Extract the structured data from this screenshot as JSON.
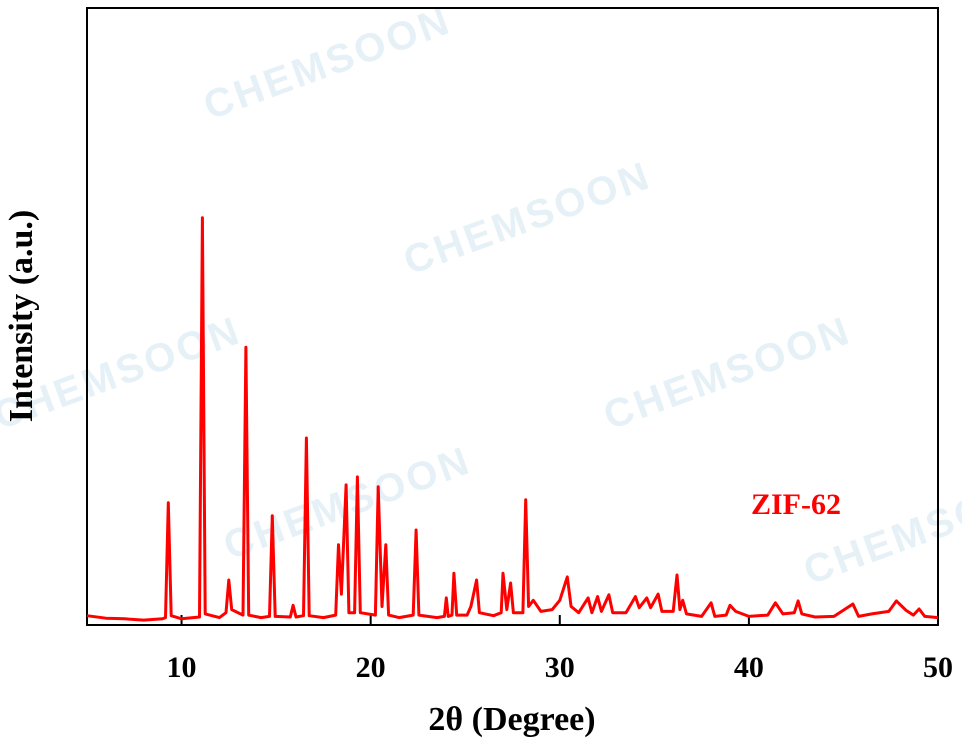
{
  "chart_data": {
    "type": "line",
    "xlabel": "2θ (Degree)",
    "ylabel": "Intensity (a.u.)",
    "watermark": "CHEMSOON",
    "xlim": [
      5,
      50
    ],
    "xticks": [
      10,
      20,
      30,
      40,
      50
    ],
    "ylim": [
      0,
      100
    ],
    "x": [
      5,
      6,
      7,
      8,
      9,
      9.15,
      9.3,
      9.45,
      10,
      10.95,
      11.1,
      11.25,
      12,
      12.35,
      12.5,
      12.65,
      13.25,
      13.4,
      13.55,
      14.2,
      14.65,
      14.8,
      14.95,
      15.75,
      15.9,
      16.05,
      16.45,
      16.6,
      16.75,
      17.5,
      18.15,
      18.3,
      18.45,
      18.7,
      18.85,
      19.15,
      19.3,
      19.45,
      20.25,
      20.4,
      20.6,
      20.8,
      20.95,
      21.5,
      22.25,
      22.4,
      22.55,
      23.5,
      23.9,
      24.0,
      24.1,
      24.3,
      24.4,
      24.55,
      25.1,
      25.3,
      25.6,
      25.75,
      26.5,
      26.9,
      27.0,
      27.2,
      27.4,
      27.55,
      28.05,
      28.2,
      28.35,
      28.6,
      29,
      29.6,
      30,
      30.4,
      30.6,
      31,
      31.5,
      31.7,
      32.0,
      32.2,
      32.6,
      32.8,
      33.5,
      34.0,
      34.2,
      34.6,
      34.8,
      35.2,
      35.4,
      36,
      36.2,
      36.35,
      36.5,
      36.7,
      37.5,
      38.0,
      38.2,
      38.8,
      39.0,
      39.3,
      40,
      41,
      41.4,
      41.8,
      42.4,
      42.6,
      42.8,
      43.5,
      44.5,
      45.5,
      45.8,
      46.5,
      47.4,
      47.8,
      48.3,
      48.7,
      49.0,
      49.3,
      50
    ],
    "series": [
      {
        "name": "ZIF-62",
        "color": "#ff0000",
        "values": [
          1.5,
          1.1,
          1.0,
          0.8,
          1.0,
          1.2,
          19.8,
          1.5,
          1.0,
          1.3,
          66,
          1.8,
          1.2,
          2,
          7.3,
          2.5,
          1.6,
          45,
          1.6,
          1.2,
          1.4,
          17.7,
          1.4,
          1.3,
          3.2,
          1.3,
          1.5,
          30.3,
          1.5,
          1.2,
          1.6,
          13,
          5,
          22.7,
          2,
          2,
          24,
          2,
          1.6,
          22.4,
          3,
          13,
          1.6,
          1.2,
          1.6,
          15.4,
          1.6,
          1.2,
          1.4,
          4.4,
          1.4,
          1.6,
          8.4,
          1.6,
          1.6,
          3,
          7.3,
          2,
          1.5,
          2,
          8.4,
          2.5,
          6.8,
          2,
          2,
          20.3,
          3,
          4,
          2.2,
          2.5,
          4,
          7.8,
          3,
          2,
          4.4,
          2,
          4.6,
          2.2,
          4.9,
          2,
          2,
          4.6,
          2.8,
          4.4,
          2.8,
          5,
          2.2,
          2.2,
          8.1,
          2.5,
          4,
          1.8,
          1.4,
          3.6,
          1.4,
          1.6,
          3.2,
          2.2,
          1.4,
          1.6,
          3.6,
          1.8,
          2,
          3.9,
          1.8,
          1.3,
          1.4,
          3.4,
          1.4,
          1.8,
          2.2,
          3.9,
          2.4,
          1.6,
          2.6,
          1.4,
          1.2
        ]
      }
    ]
  }
}
